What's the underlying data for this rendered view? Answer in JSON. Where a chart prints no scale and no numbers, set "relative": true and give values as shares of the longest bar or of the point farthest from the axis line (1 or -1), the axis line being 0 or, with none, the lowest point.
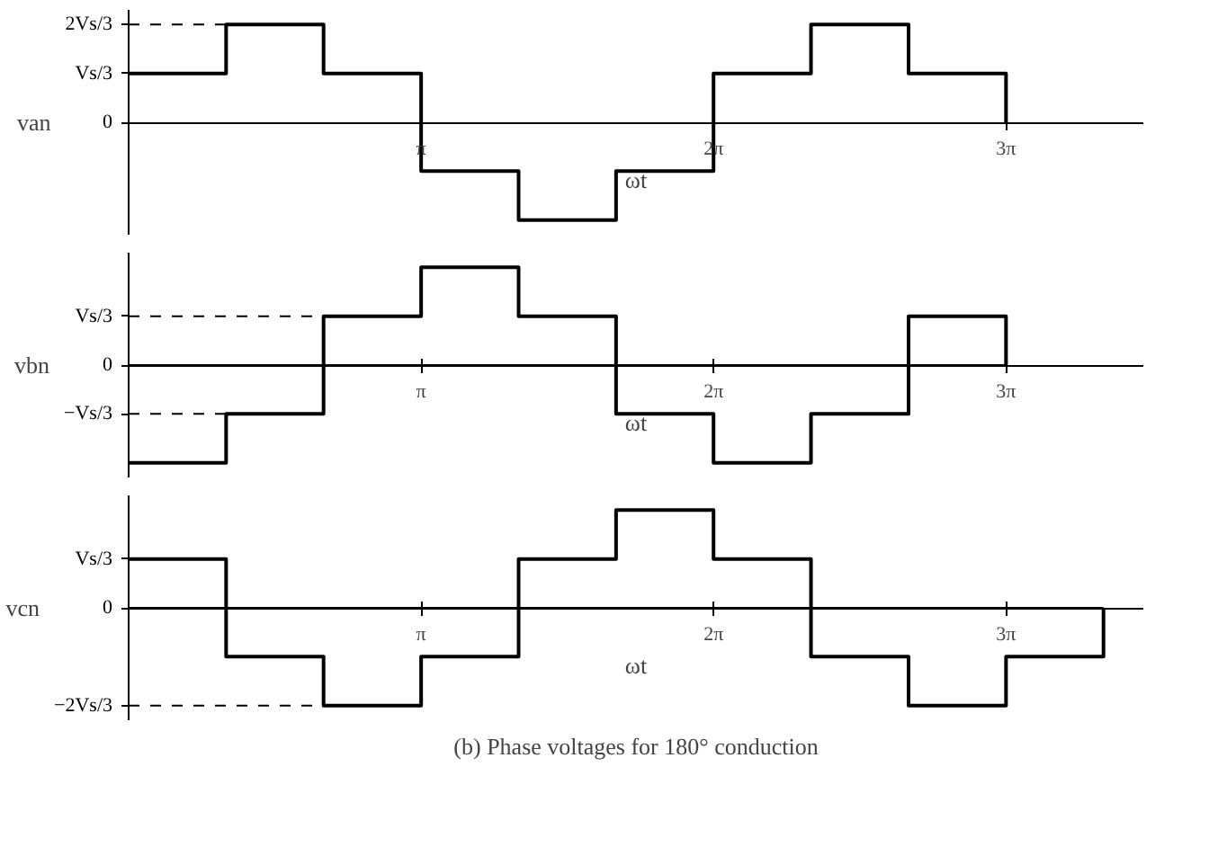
{
  "chart_data": [
    {
      "type": "step",
      "relative": true,
      "ylabel": "van",
      "xlabel": "ωt",
      "x": [
        0,
        1.047,
        2.094,
        3.142,
        4.189,
        5.236,
        6.283,
        7.33,
        8.378,
        9.425
      ],
      "values": [
        0.5,
        1,
        0.5,
        -0.5,
        -1,
        -0.5,
        0.5,
        1,
        0.5,
        0
      ],
      "color": "#000000",
      "xlim": [
        0,
        10.9
      ],
      "xticks": [
        {
          "value": 3.142,
          "label": "π"
        },
        {
          "value": 6.283,
          "label": "2π"
        },
        {
          "value": 9.425,
          "label": "3π"
        }
      ],
      "ref_lines": [
        {
          "axis": "y",
          "value": 0,
          "label": "0"
        },
        {
          "axis": "y",
          "value": 0.5,
          "label": "Vs/3"
        },
        {
          "axis": "y",
          "value": 1,
          "label": "2Vs/3",
          "line_style": "dashed"
        }
      ]
    },
    {
      "type": "step",
      "relative": true,
      "ylabel": "vbn",
      "xlabel": "ωt",
      "x": [
        0,
        1.047,
        2.094,
        3.142,
        4.189,
        5.236,
        6.283,
        7.33,
        8.378,
        9.425
      ],
      "values": [
        -1,
        -0.5,
        0.5,
        1,
        0.5,
        -0.5,
        -1,
        -0.5,
        0.5,
        0
      ],
      "color": "#000000",
      "xlim": [
        0,
        10.9
      ],
      "xticks": [
        {
          "value": 3.142,
          "label": "π"
        },
        {
          "value": 6.283,
          "label": "2π"
        },
        {
          "value": 9.425,
          "label": "3π"
        }
      ],
      "ref_lines": [
        {
          "axis": "y",
          "value": 0,
          "label": "0",
          "line_style": "solid"
        },
        {
          "axis": "y",
          "value": 0.5,
          "label": "Vs/3",
          "line_style": "dashed"
        },
        {
          "axis": "y",
          "value": -0.5,
          "label": "−Vs/3",
          "line_style": "dashed"
        }
      ]
    },
    {
      "type": "step",
      "relative": true,
      "ylabel": "vcn",
      "xlabel": "ωt",
      "title": "(b) Phase voltages for 180° conduction",
      "x": [
        0,
        1.047,
        2.094,
        3.142,
        4.189,
        5.236,
        6.283,
        7.33,
        8.378,
        9.425,
        10.472
      ],
      "values": [
        0.5,
        -0.5,
        -1,
        -0.5,
        0.5,
        1,
        0.5,
        -0.5,
        -1,
        -0.5,
        0
      ],
      "color": "#000000",
      "xlim": [
        0,
        10.9
      ],
      "xticks": [
        {
          "value": 3.142,
          "label": "π"
        },
        {
          "value": 6.283,
          "label": "2π"
        },
        {
          "value": 9.425,
          "label": "3π"
        }
      ],
      "ref_lines": [
        {
          "axis": "y",
          "value": 0,
          "label": "0",
          "line_style": "solid"
        },
        {
          "axis": "y",
          "value": 0.5,
          "label": "Vs/3"
        },
        {
          "axis": "y",
          "value": -1,
          "label": "−2Vs/3",
          "line_style": "dashed"
        }
      ]
    }
  ]
}
